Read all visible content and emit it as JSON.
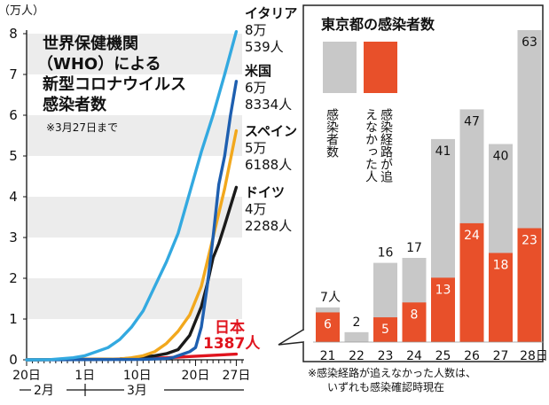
{
  "chart_data": [
    {
      "type": "line",
      "title": "世界保健機関（WHO）による新型コロナウイルス感染者数",
      "title_lines": [
        "世界保健機関",
        "（WHO）による",
        "新型コロナウイルス",
        "感染者数"
      ],
      "note": "※3月27日まで",
      "ylabel": "（万人）",
      "ylim": [
        0,
        8
      ],
      "yticks": [
        0,
        1,
        2,
        3,
        4,
        5,
        6,
        7,
        8
      ],
      "xlim": [
        0,
        37
      ],
      "xticks": [
        {
          "pos": 0,
          "label": "20日"
        },
        {
          "pos": 10,
          "label": "1日"
        },
        {
          "pos": 19,
          "label": "10日"
        },
        {
          "pos": 29,
          "label": "20日"
        },
        {
          "pos": 36,
          "label": "27日"
        }
      ],
      "months": [
        "2月",
        "3月"
      ],
      "series": [
        {
          "name": "イタリア",
          "label_lines": [
            "イタリア",
            "8万",
            "539人"
          ],
          "final": 80539,
          "color": "#33a9e0",
          "x": [
            0,
            4,
            8,
            10,
            12,
            14,
            16,
            18,
            20,
            22,
            24,
            26,
            28,
            30,
            32,
            34,
            36
          ],
          "y": [
            0,
            0.005,
            0.05,
            0.1,
            0.2,
            0.3,
            0.5,
            0.8,
            1.2,
            1.8,
            2.4,
            3.1,
            4.1,
            5.1,
            6.0,
            7.0,
            8.05
          ]
        },
        {
          "name": "米国",
          "label_lines": [
            "米国",
            "6万",
            "8334人"
          ],
          "final": 68334,
          "color": "#1e5fb0",
          "x": [
            0,
            20,
            24,
            25,
            26,
            27,
            28,
            29,
            30,
            31,
            32,
            33,
            34,
            35,
            36
          ],
          "y": [
            0,
            0.01,
            0.03,
            0.05,
            0.1,
            0.15,
            0.2,
            0.3,
            0.8,
            1.8,
            3.0,
            4.3,
            5.0,
            6.0,
            6.83
          ]
        },
        {
          "name": "スペイン",
          "label_lines": [
            "スペイン",
            "5万",
            "6188人"
          ],
          "final": 56188,
          "color": "#f2a81d",
          "x": [
            0,
            16,
            18,
            20,
            22,
            24,
            26,
            28,
            30,
            32,
            34,
            36
          ],
          "y": [
            0,
            0.02,
            0.05,
            0.1,
            0.2,
            0.4,
            0.7,
            1.1,
            1.8,
            3.0,
            4.2,
            5.62
          ]
        },
        {
          "name": "ドイツ",
          "label_lines": [
            "ドイツ",
            "4万",
            "2288人"
          ],
          "final": 42288,
          "color": "#1a1a1a",
          "x": [
            0,
            16,
            18,
            20,
            22,
            24,
            26,
            28,
            30,
            31,
            32,
            33,
            34,
            36
          ],
          "y": [
            0,
            0.02,
            0.04,
            0.07,
            0.1,
            0.15,
            0.25,
            0.6,
            1.3,
            1.85,
            2.5,
            2.85,
            3.3,
            4.23
          ]
        },
        {
          "name": "日本",
          "label_lines": [
            "日本",
            "1387人"
          ],
          "final": 1387,
          "color": "#e0141e",
          "x": [
            0,
            10,
            16,
            20,
            24,
            28,
            32,
            36
          ],
          "y": [
            0,
            0.01,
            0.02,
            0.03,
            0.05,
            0.08,
            0.11,
            0.14
          ]
        }
      ]
    },
    {
      "type": "bar",
      "title": "東京都の感染者数",
      "categories": [
        "21",
        "22",
        "23",
        "24",
        "25",
        "26",
        "27",
        "28日"
      ],
      "series": [
        {
          "name": "感染者数",
          "values": [
            7,
            2,
            16,
            17,
            41,
            47,
            40,
            63
          ],
          "color": "#c8c8c8"
        },
        {
          "name": "感染経路が追えなかった人",
          "values": [
            6,
            0,
            5,
            8,
            13,
            24,
            18,
            23
          ],
          "color": "#e8502a"
        }
      ],
      "total_labels": [
        "7人",
        "2",
        "16",
        "17",
        "41",
        "47",
        "40",
        "63"
      ],
      "untraced_labels": [
        "6",
        "",
        "5",
        "8",
        "13",
        "24",
        "18",
        "23"
      ],
      "ylim": [
        0,
        63
      ],
      "legend": [
        {
          "text": "感染者数",
          "color": "#c8c8c8"
        },
        {
          "text": "感染経路が追えなかった人",
          "color": "#e8502a"
        }
      ],
      "note_lines": [
        "※感染経路が追えなかった人数は、",
        "いずれも感染確認時現在"
      ]
    }
  ]
}
